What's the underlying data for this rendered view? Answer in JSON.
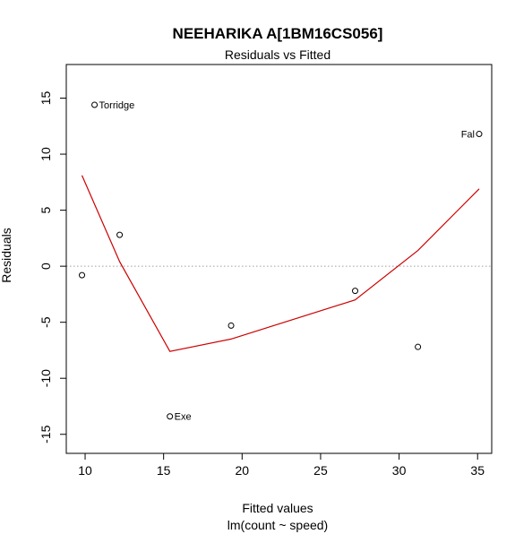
{
  "chart_data": {
    "type": "scatter",
    "title": "NEEHARIKA A[1BM16CS056]",
    "subtitle": "Residuals vs Fitted",
    "xlabel": "Fitted values",
    "xlabel_sub": "lm(count ~ speed)",
    "ylabel": "Residuals",
    "xlim": [
      8.8,
      35.9
    ],
    "ylim": [
      -16.7,
      18.0
    ],
    "x_ticks": [
      10,
      15,
      20,
      25,
      30,
      35
    ],
    "y_ticks": [
      -15,
      -10,
      -5,
      0,
      5,
      10,
      15
    ],
    "points": [
      {
        "x": 9.8,
        "y": -0.8,
        "label": ""
      },
      {
        "x": 10.6,
        "y": 14.4,
        "label": "Torridge"
      },
      {
        "x": 12.2,
        "y": 2.8,
        "label": ""
      },
      {
        "x": 15.4,
        "y": -13.4,
        "label": "Exe"
      },
      {
        "x": 19.3,
        "y": -5.3,
        "label": ""
      },
      {
        "x": 27.2,
        "y": -2.2,
        "label": ""
      },
      {
        "x": 31.2,
        "y": -7.2,
        "label": ""
      },
      {
        "x": 35.1,
        "y": 11.8,
        "label": "Fal"
      }
    ],
    "smooth_line": {
      "color": "#cc0000",
      "x": [
        9.8,
        12.2,
        15.4,
        19.3,
        27.2,
        31.2,
        35.1
      ],
      "y": [
        8.1,
        0.4,
        -7.6,
        -6.5,
        -3.0,
        1.4,
        6.9
      ]
    },
    "reference_line": {
      "y": 0,
      "color": "#a0a0a0",
      "style": "dotted"
    }
  }
}
